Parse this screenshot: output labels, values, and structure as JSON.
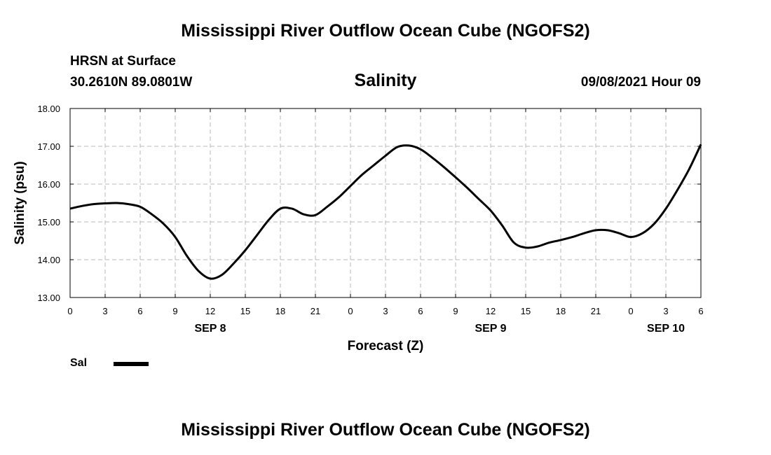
{
  "header": {
    "title": "Mississippi River Outflow Ocean Cube (NGOFS2)",
    "station": "HRSN at Surface",
    "coordinates": "30.2610N  89.0801W",
    "timestamp": "09/08/2021 Hour 09"
  },
  "footer": {
    "title": "Mississippi River Outflow Ocean Cube (NGOFS2)"
  },
  "chart_data": {
    "type": "line",
    "title": "Salinity",
    "xlabel": "Forecast (Z)",
    "ylabel": "Salinity (psu)",
    "x_unit": "hours from 2021-09-08 00Z",
    "xlim": [
      0,
      54
    ],
    "ylim": [
      13.0,
      18.0
    ],
    "y_ticks": [
      "13.00",
      "14.00",
      "15.00",
      "16.00",
      "17.00",
      "18.00"
    ],
    "y_tick_values": [
      13,
      14,
      15,
      16,
      17,
      18
    ],
    "x_tick_values": [
      0,
      3,
      6,
      9,
      12,
      15,
      18,
      21,
      24,
      27,
      30,
      33,
      36,
      39,
      42,
      45,
      48,
      51,
      54
    ],
    "x_tick_labels": [
      "0",
      "3",
      "6",
      "9",
      "12",
      "15",
      "18",
      "21",
      "0",
      "3",
      "6",
      "9",
      "12",
      "15",
      "18",
      "21",
      "0",
      "3",
      "6"
    ],
    "date_labels": [
      {
        "hour": 12,
        "label": "SEP 8"
      },
      {
        "hour": 36,
        "label": "SEP 9"
      },
      {
        "hour": 51,
        "label": "SEP 10"
      }
    ],
    "grid": true,
    "legend": "bottom-left",
    "series": [
      {
        "name": "Sal",
        "color": "#000000",
        "x": [
          0,
          1,
          2,
          3,
          4,
          5,
          6,
          7,
          8,
          9,
          10,
          11,
          12,
          13,
          14,
          15,
          16,
          17,
          18,
          19,
          20,
          21,
          22,
          23,
          24,
          25,
          26,
          27,
          28,
          29,
          30,
          31,
          32,
          33,
          34,
          35,
          36,
          37,
          38,
          39,
          40,
          41,
          42,
          43,
          44,
          45,
          46,
          47,
          48,
          49,
          50,
          51,
          52,
          53,
          54
        ],
        "y": [
          15.35,
          15.42,
          15.47,
          15.49,
          15.5,
          15.47,
          15.4,
          15.2,
          14.95,
          14.6,
          14.1,
          13.7,
          13.5,
          13.6,
          13.9,
          14.25,
          14.65,
          15.05,
          15.35,
          15.35,
          15.2,
          15.18,
          15.4,
          15.65,
          15.95,
          16.25,
          16.5,
          16.75,
          16.98,
          17.02,
          16.92,
          16.7,
          16.45,
          16.18,
          15.9,
          15.6,
          15.3,
          14.9,
          14.45,
          14.32,
          14.35,
          14.45,
          14.52,
          14.6,
          14.7,
          14.78,
          14.78,
          14.7,
          14.6,
          14.7,
          14.95,
          15.35,
          15.85,
          16.4,
          17.05
        ]
      }
    ]
  }
}
